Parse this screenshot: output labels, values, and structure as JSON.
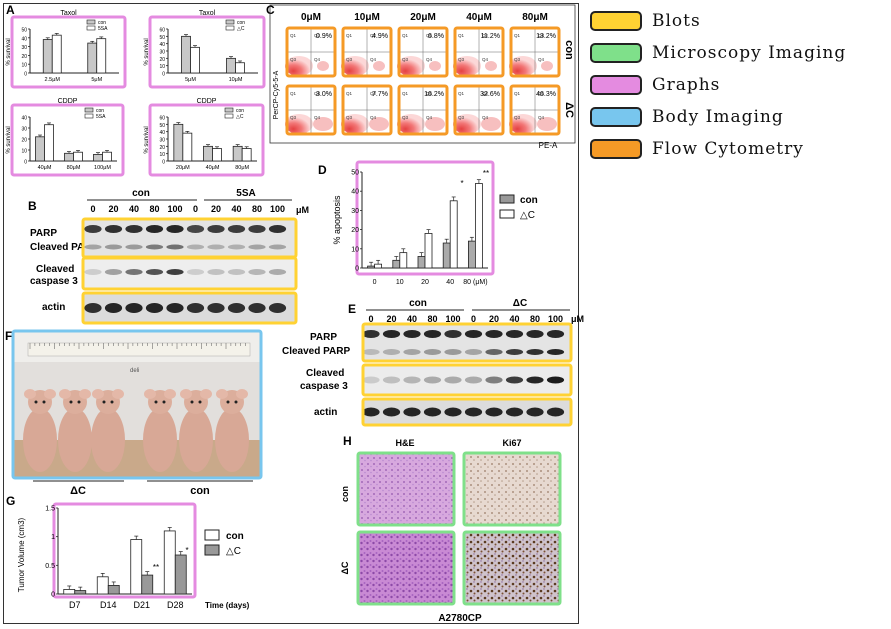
{
  "panels": {
    "A": {
      "letter": "A",
      "charts": [
        {
          "title": "Taxol",
          "legend": [
            "con",
            "5SA"
          ],
          "ylabel": "% survival",
          "categories": [
            "2.5μM",
            "5μM"
          ],
          "ticks": [
            "0",
            "10",
            "20",
            "30",
            "40",
            "50"
          ]
        },
        {
          "title": "Taxol",
          "legend": [
            "con",
            "△C"
          ],
          "ylabel": "% survival",
          "categories": [
            "5μM",
            "10μM"
          ],
          "ticks": [
            "0",
            "10",
            "20",
            "30",
            "40",
            "50",
            "60"
          ]
        },
        {
          "title": "CDDP",
          "legend": [
            "con",
            "5SA"
          ],
          "ylabel": "% survival",
          "categories": [
            "40μM",
            "80μM",
            "100μM"
          ],
          "ticks": [
            "0",
            "10",
            "20",
            "30",
            "40"
          ]
        },
        {
          "title": "CDDP",
          "legend": [
            "con",
            "△C"
          ],
          "ylabel": "% survival",
          "categories": [
            "20μM",
            "40μM",
            "80μM"
          ],
          "ticks": [
            "0",
            "10",
            "20",
            "30",
            "40",
            "50",
            "60"
          ]
        }
      ]
    },
    "B": {
      "letter": "B",
      "groups": [
        "con",
        "5SA"
      ],
      "lanes": [
        "0",
        "20",
        "40",
        "80",
        "100",
        "0",
        "20",
        "40",
        "80",
        "100"
      ],
      "unit": "μM",
      "rows": [
        "PARP",
        "Cleaved PARP",
        "Cleaved",
        "caspase 3",
        "actin"
      ]
    },
    "C": {
      "letter": "C",
      "columns": [
        "0μM",
        "10μM",
        "20μM",
        "40μM",
        "80μM"
      ],
      "rows": [
        "con",
        "ΔC"
      ],
      "percent_con": [
        "0.9%",
        "4.9%",
        "6.8%",
        "11.2%",
        "13.2%"
      ],
      "percent_dc": [
        "3.0%",
        "7.7%",
        "16.2%",
        "32.6%",
        "46.3%"
      ],
      "ylabel": "PerCP-Cy5-5-A",
      "xlabel": "PE-A",
      "quadrants": [
        "Q1",
        "Q2",
        "Q3",
        "Q4"
      ]
    },
    "D": {
      "letter": "D",
      "ylabel": "% apoptosis",
      "legend": [
        "con",
        "△C"
      ],
      "categories": [
        "0",
        "10",
        "20",
        "40",
        "80 (μM)"
      ],
      "ticks": [
        "0",
        "10",
        "20",
        "30",
        "40",
        "50"
      ],
      "sig": [
        "*",
        "**"
      ]
    },
    "E": {
      "letter": "E",
      "groups": [
        "con",
        "ΔC"
      ],
      "lanes": [
        "0",
        "20",
        "40",
        "80",
        "100",
        "0",
        "20",
        "40",
        "80",
        "100"
      ],
      "unit": "μM",
      "rows": [
        "PARP",
        "Cleaved PARP",
        "Cleaved",
        "caspase 3",
        "actin"
      ]
    },
    "F": {
      "letter": "F",
      "groups": [
        "ΔC",
        "con"
      ],
      "ruler_text": "deli"
    },
    "G": {
      "letter": "G",
      "ylabel": "Tumor Volume (cm3)",
      "xlabel": "Time (days)",
      "legend": [
        "con",
        "△C"
      ],
      "categories": [
        "D7",
        "D14",
        "D21",
        "D28"
      ],
      "ticks": [
        "0",
        "0.5",
        "1",
        "1.5"
      ],
      "sig": [
        "**",
        "*"
      ]
    },
    "H": {
      "letter": "H",
      "columns": [
        "H&E",
        "Ki67"
      ],
      "rows": [
        "con",
        "ΔC"
      ],
      "caption": "A2780CP"
    }
  },
  "legend": [
    {
      "label": "Blots",
      "color": "#ffd233"
    },
    {
      "label": "Microscopy Imaging",
      "color": "#7fe08a"
    },
    {
      "label": "Graphs",
      "color": "#e48be0"
    },
    {
      "label": "Body Imaging",
      "color": "#78c6ee"
    },
    {
      "label": "Flow Cytometry",
      "color": "#f59a26"
    }
  ],
  "chart_data": [
    {
      "type": "bar",
      "panel": "A1",
      "title": "Taxol",
      "ylabel": "% survival",
      "categories": [
        "2.5μM",
        "5μM"
      ],
      "ylim": [
        0,
        50
      ],
      "series": [
        {
          "name": "con",
          "values": [
            38,
            34
          ]
        },
        {
          "name": "5SA",
          "values": [
            43,
            39
          ]
        }
      ]
    },
    {
      "type": "bar",
      "panel": "A2",
      "title": "Taxol",
      "ylabel": "% survival",
      "categories": [
        "5μM",
        "10μM"
      ],
      "ylim": [
        0,
        60
      ],
      "series": [
        {
          "name": "con",
          "values": [
            50,
            20
          ]
        },
        {
          "name": "△C",
          "values": [
            35,
            14
          ]
        }
      ]
    },
    {
      "type": "bar",
      "panel": "A3",
      "title": "CDDP",
      "ylabel": "% survival",
      "categories": [
        "40μM",
        "80μM",
        "100μM"
      ],
      "ylim": [
        0,
        40
      ],
      "series": [
        {
          "name": "con",
          "values": [
            22,
            7,
            6
          ]
        },
        {
          "name": "5SA",
          "values": [
            33,
            8,
            8
          ]
        }
      ]
    },
    {
      "type": "bar",
      "panel": "A4",
      "title": "CDDP",
      "ylabel": "% survival",
      "categories": [
        "20μM",
        "40μM",
        "80μM"
      ],
      "ylim": [
        0,
        60
      ],
      "series": [
        {
          "name": "con",
          "values": [
            50,
            20,
            20
          ]
        },
        {
          "name": "△C",
          "values": [
            38,
            17,
            17
          ]
        }
      ]
    },
    {
      "type": "bar",
      "panel": "D",
      "ylabel": "% apoptosis",
      "categories": [
        "0",
        "10",
        "20",
        "40",
        "80 (μM)"
      ],
      "ylim": [
        0,
        50
      ],
      "series": [
        {
          "name": "con",
          "values": [
            1,
            4,
            6,
            13,
            14
          ]
        },
        {
          "name": "△C",
          "values": [
            2,
            8,
            18,
            35,
            44
          ]
        }
      ]
    },
    {
      "type": "bar",
      "panel": "G",
      "ylabel": "Tumor Volume (cm3)",
      "xlabel": "Time (days)",
      "categories": [
        "D7",
        "D14",
        "D21",
        "D28"
      ],
      "ylim": [
        0,
        1.5
      ],
      "series": [
        {
          "name": "con",
          "values": [
            0.08,
            0.3,
            0.95,
            1.1
          ]
        },
        {
          "name": "△C",
          "values": [
            0.06,
            0.15,
            0.33,
            0.68
          ]
        }
      ]
    }
  ]
}
